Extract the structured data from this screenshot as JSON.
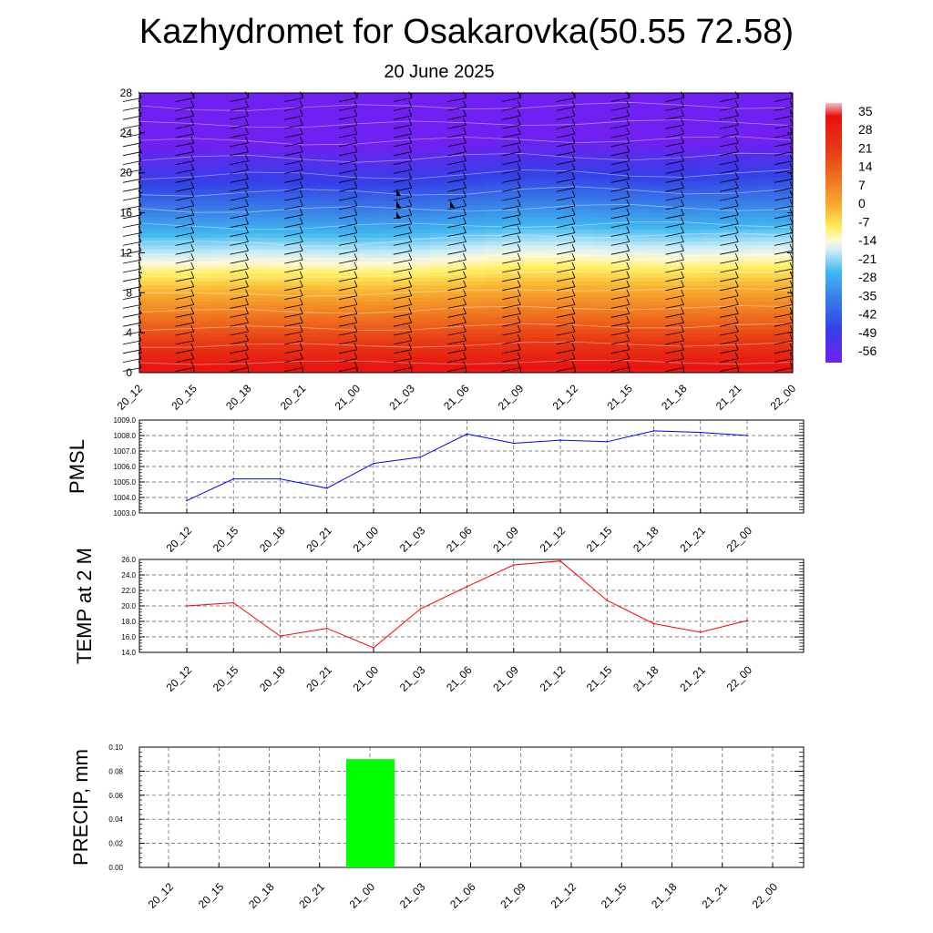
{
  "header": {
    "title": "Kazhydromet for Osakarovka(50.55 72.58)",
    "subtitle": "20 June 2025"
  },
  "time_labels": [
    "20_12",
    "20_15",
    "20_18",
    "20_21",
    "21_00",
    "21_03",
    "21_06",
    "21_09",
    "21_12",
    "21_15",
    "21_18",
    "21_21",
    "22_00"
  ],
  "colors": {
    "pmsl_line": "#0000ff",
    "temp_line": "#ff0000",
    "precip_bar": "#00ff00",
    "grid": "#555555",
    "barb": "#000000"
  },
  "chart_data": [
    {
      "type": "heatmap",
      "title": "",
      "y_ticks": [
        "0",
        "4",
        "8",
        "12",
        "16",
        "20",
        "24",
        "28"
      ],
      "ylim": [
        0,
        28
      ],
      "x": [
        "20_12",
        "20_15",
        "20_18",
        "20_21",
        "21_00",
        "21_03",
        "21_06",
        "21_09",
        "21_12",
        "21_15",
        "21_18",
        "21_21",
        "22_00"
      ],
      "colorbar": {
        "labels": [
          "35",
          "28",
          "21",
          "14",
          "7",
          "0",
          "-7",
          "-14",
          "-21",
          "-28",
          "-35",
          "-42",
          "-49",
          "-56"
        ],
        "range": [
          -60,
          38
        ]
      },
      "freezing_level": [
        12.0,
        12.0,
        12.2,
        12.1,
        12.0,
        12.1,
        12.5,
        12.9,
        12.9,
        12.7,
        12.6,
        12.8,
        12.9
      ],
      "wind_barbs": "present"
    },
    {
      "type": "line",
      "ylabel": "PMSL",
      "y_ticks": [
        "1003.0",
        "1004.0",
        "1005.0",
        "1006.0",
        "1007.0",
        "1008.0",
        "1009.0"
      ],
      "ylim": [
        1003.0,
        1009.0
      ],
      "x": [
        "20_12",
        "20_15",
        "20_18",
        "20_21",
        "21_00",
        "21_03",
        "21_06",
        "21_09",
        "21_12",
        "21_15",
        "21_18",
        "21_21",
        "22_00"
      ],
      "values": [
        1003.8,
        1005.2,
        1005.2,
        1004.6,
        1006.2,
        1006.6,
        1008.1,
        1007.5,
        1007.7,
        1007.6,
        1008.3,
        1008.2,
        1008.0
      ]
    },
    {
      "type": "line",
      "ylabel": "TEMP at 2 M",
      "y_ticks": [
        "14.0",
        "16.0",
        "18.0",
        "20.0",
        "22.0",
        "24.0",
        "26.0"
      ],
      "ylim": [
        14.0,
        26.0
      ],
      "x": [
        "20_12",
        "20_15",
        "20_18",
        "20_21",
        "21_00",
        "21_03",
        "21_06",
        "21_09",
        "21_12",
        "21_15",
        "21_18",
        "21_21",
        "22_00"
      ],
      "values": [
        20.0,
        20.4,
        16.1,
        17.1,
        14.6,
        19.6,
        22.5,
        25.3,
        25.8,
        20.7,
        17.7,
        16.6,
        18.1
      ]
    },
    {
      "type": "bar",
      "ylabel": "PRECIP, mm",
      "y_ticks": [
        "0.00",
        "0.02",
        "0.04",
        "0.06",
        "0.08",
        "0.10"
      ],
      "ylim": [
        0,
        0.1
      ],
      "categories": [
        "20_12",
        "20_15",
        "20_18",
        "20_21",
        "21_00",
        "21_03",
        "21_06",
        "21_09",
        "21_12",
        "21_15",
        "21_18",
        "21_21",
        "22_00"
      ],
      "values": [
        0,
        0,
        0,
        0,
        0.09,
        0,
        0,
        0,
        0,
        0,
        0,
        0,
        0
      ]
    }
  ]
}
